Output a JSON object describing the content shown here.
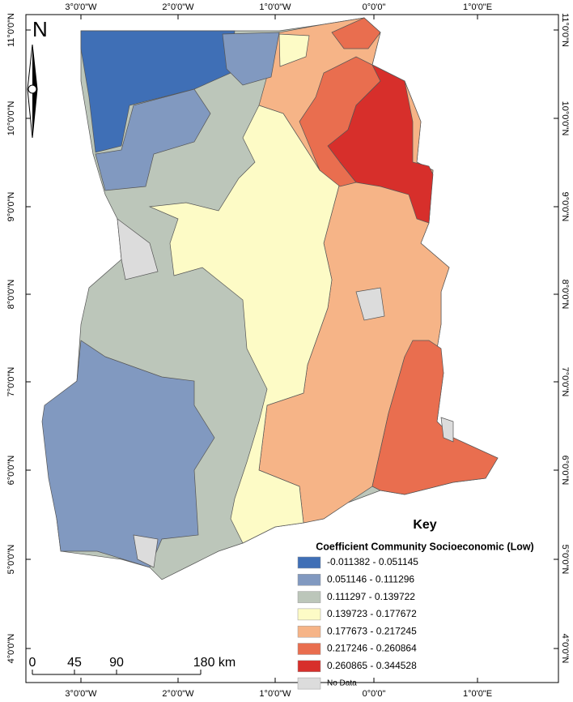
{
  "map": {
    "top_labels": [
      "3°0'0\"W",
      "2°0'0\"W",
      "1°0'0\"W",
      "0°0'0\"",
      "1°0'0\"E"
    ],
    "bottom_labels": [
      "3°0'0\"W",
      "2°0'0\"W",
      "1°0'0\"W",
      "0°0'0\"",
      "1°0'0\"E"
    ],
    "left_labels": [
      "11°0'0\"N",
      "10°0'0\"N",
      "9°0'0\"N",
      "8°0'0\"N",
      "7°0'0\"N",
      "6°0'0\"N",
      "5°0'0\"N",
      "4°0'0\"N"
    ],
    "right_labels": [
      "11°0'0\"N",
      "10°0'0\"N",
      "9°0'0\"N",
      "8°0'0\"N",
      "7°0'0\"N",
      "6°0'0\"N",
      "5°0'0\"N",
      "4°0'0\"N"
    ],
    "north": "N",
    "scale_bar": {
      "labels": [
        "0",
        "45",
        "90",
        "180 km"
      ]
    },
    "legend": {
      "title": "Key",
      "subtitle": "Coefficient Community Socioeconomic (Low)",
      "items": [
        {
          "label": "-0.011382 - 0.051145",
          "color": "#3f6fb6"
        },
        {
          "label": "0.051146 - 0.111296",
          "color": "#8199c0"
        },
        {
          "label": "0.111297 - 0.139722",
          "color": "#bcc6ba"
        },
        {
          "label": "0.139723 - 0.177672",
          "color": "#fdfbc6"
        },
        {
          "label": "0.177673 - 0.217245",
          "color": "#f6b487"
        },
        {
          "label": "0.217246 - 0.260864",
          "color": "#e96e4f"
        },
        {
          "label": "0.260865 - 0.344528",
          "color": "#d72f2b"
        },
        {
          "label": "No Data",
          "color": "#dcdcdc"
        }
      ]
    }
  }
}
